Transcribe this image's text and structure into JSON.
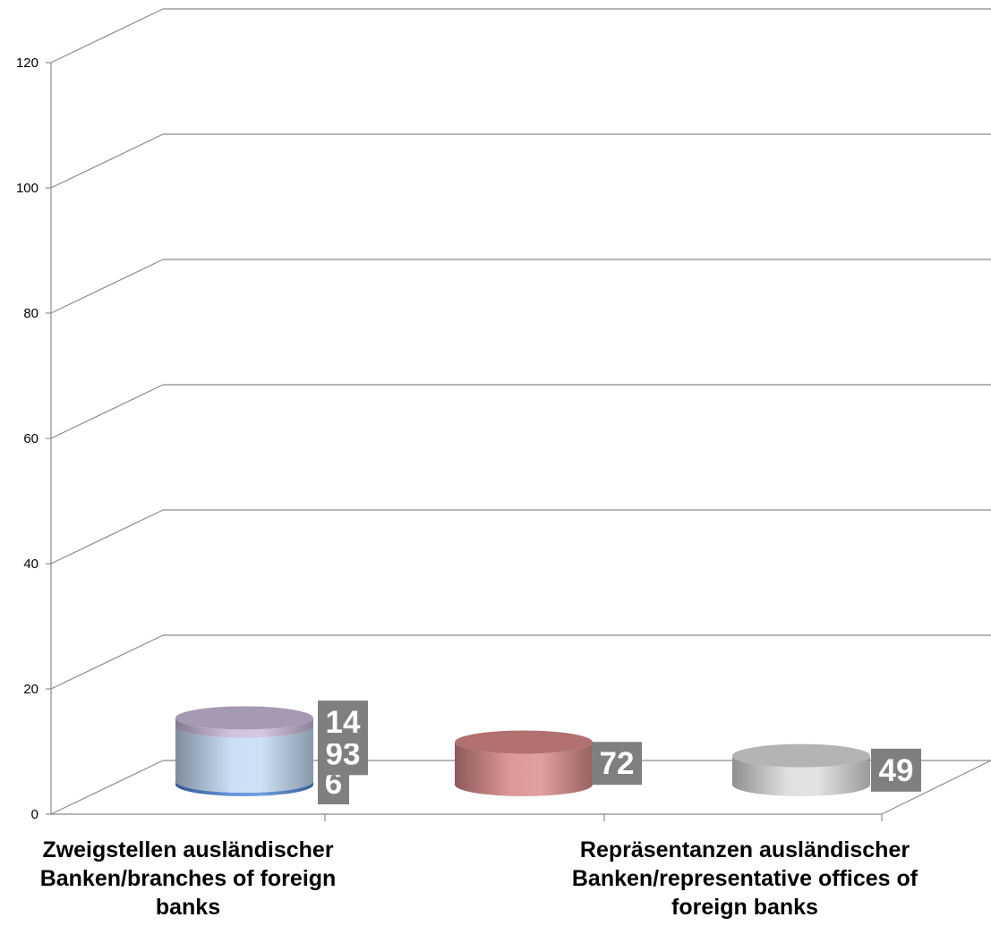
{
  "chart_data": {
    "type": "bar",
    "style": "3d-cylinder-stacked",
    "ylim": [
      0,
      120
    ],
    "yticks": [
      0,
      20,
      40,
      60,
      80,
      100,
      120
    ],
    "grid": true,
    "legend": "none",
    "categories": [
      [
        "Zweigstellen ausländischer",
        "Banken/branches of foreign",
        "banks"
      ],
      [
        "Repräsentanzen ausländischer",
        "Banken/representative offices of",
        "foreign banks"
      ]
    ],
    "bars": [
      {
        "segments": [
          {
            "value": 6,
            "label": "6",
            "color": "#4f86d6"
          },
          {
            "value": 93,
            "label": "93",
            "color": "#c3d9f3"
          },
          {
            "value": 14,
            "label": "14",
            "color": "#cbbad9"
          }
        ]
      },
      {
        "segments": [
          {
            "value": 72,
            "label": "72",
            "color": "#d98989"
          }
        ]
      },
      {
        "segments": [
          {
            "value": 49,
            "label": "49",
            "color": "#dcdcdc"
          }
        ]
      }
    ],
    "colors": {
      "gridline": "#8c8c8c",
      "label_box": "#7f7f7f"
    }
  }
}
